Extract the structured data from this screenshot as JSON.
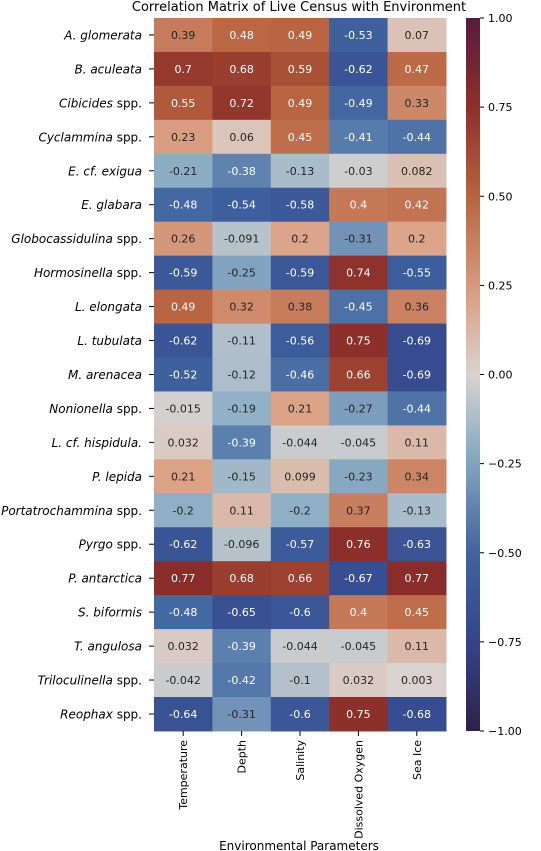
{
  "chart_data": {
    "type": "heatmap",
    "title": "Correlation Matrix of Live Census with Environment",
    "xlabel": "Environmental Parameters",
    "ylabel": "",
    "columns": [
      "Temperature",
      "Depth",
      "Salinity",
      "Dissolved Oxygen",
      "Sea Ice"
    ],
    "rows": [
      {
        "label_italic": "A. glomerata",
        "label_plain": "",
        "values": [
          0.39,
          0.48,
          0.49,
          -0.53,
          0.07
        ],
        "labels": [
          "0.39",
          "0.48",
          "0.49",
          "-0.53",
          "0.07"
        ]
      },
      {
        "label_italic": "B. aculeata",
        "label_plain": "",
        "values": [
          0.7,
          0.68,
          0.59,
          -0.62,
          0.47
        ],
        "labels": [
          "0.7",
          "0.68",
          "0.59",
          "-0.62",
          "0.47"
        ]
      },
      {
        "label_italic": "Cibicides",
        "label_plain": " spp.",
        "values": [
          0.55,
          0.72,
          0.49,
          -0.49,
          0.33
        ],
        "labels": [
          "0.55",
          "0.72",
          "0.49",
          "-0.49",
          "0.33"
        ]
      },
      {
        "label_italic": "Cyclammina",
        "label_plain": " spp.",
        "values": [
          0.23,
          0.06,
          0.45,
          -0.41,
          -0.44
        ],
        "labels": [
          "0.23",
          "0.06",
          "0.45",
          "-0.41",
          "-0.44"
        ]
      },
      {
        "label_italic": "E. cf. exigua",
        "label_plain": "",
        "values": [
          -0.21,
          -0.38,
          -0.13,
          -0.03,
          0.082
        ],
        "labels": [
          "-0.21",
          "-0.38",
          "-0.13",
          "-0.03",
          "0.082"
        ]
      },
      {
        "label_italic": "E. glabara",
        "label_plain": "",
        "values": [
          -0.48,
          -0.54,
          -0.58,
          0.4,
          0.42
        ],
        "labels": [
          "-0.48",
          "-0.54",
          "-0.58",
          "0.4",
          "0.42"
        ]
      },
      {
        "label_italic": "Globocassidulina",
        "label_plain": " spp.",
        "values": [
          0.26,
          -0.091,
          0.2,
          -0.31,
          0.2
        ],
        "labels": [
          "0.26",
          "-0.091",
          "0.2",
          "-0.31",
          "0.2"
        ]
      },
      {
        "label_italic": "Hormosinella",
        "label_plain": " spp.",
        "values": [
          -0.59,
          -0.25,
          -0.59,
          0.74,
          -0.55
        ],
        "labels": [
          "-0.59",
          "-0.25",
          "-0.59",
          "0.74",
          "-0.55"
        ]
      },
      {
        "label_italic": "L. elongata",
        "label_plain": "",
        "values": [
          0.49,
          0.32,
          0.38,
          -0.45,
          0.36
        ],
        "labels": [
          "0.49",
          "0.32",
          "0.38",
          "-0.45",
          "0.36"
        ]
      },
      {
        "label_italic": "L. tubulata",
        "label_plain": "",
        "values": [
          -0.62,
          -0.11,
          -0.56,
          0.75,
          -0.69
        ],
        "labels": [
          "-0.62",
          "-0.11",
          "-0.56",
          "0.75",
          "-0.69"
        ]
      },
      {
        "label_italic": "M. arenacea",
        "label_plain": "",
        "values": [
          -0.52,
          -0.12,
          -0.46,
          0.66,
          -0.69
        ],
        "labels": [
          "-0.52",
          "-0.12",
          "-0.46",
          "0.66",
          "-0.69"
        ]
      },
      {
        "label_italic": "Nonionella",
        "label_plain": " spp.",
        "values": [
          -0.015,
          -0.19,
          0.21,
          -0.27,
          -0.44
        ],
        "labels": [
          "-0.015",
          "-0.19",
          "0.21",
          "-0.27",
          "-0.44"
        ]
      },
      {
        "label_italic": "L. cf. hispidula.",
        "label_plain": "",
        "values": [
          0.032,
          -0.39,
          -0.044,
          -0.045,
          0.11
        ],
        "labels": [
          "0.032",
          "-0.39",
          "-0.044",
          "-0.045",
          "0.11"
        ]
      },
      {
        "label_italic": "P. lepida",
        "label_plain": "",
        "values": [
          0.21,
          -0.15,
          0.099,
          -0.23,
          0.34
        ],
        "labels": [
          "0.21",
          "-0.15",
          "0.099",
          "-0.23",
          "0.34"
        ]
      },
      {
        "label_italic": "Portatrochammina",
        "label_plain": " spp.",
        "values": [
          -0.2,
          0.11,
          -0.2,
          0.37,
          -0.13
        ],
        "labels": [
          "-0.2",
          "0.11",
          "-0.2",
          "0.37",
          "-0.13"
        ]
      },
      {
        "label_italic": "Pyrgo",
        "label_plain": " spp.",
        "values": [
          -0.62,
          -0.096,
          -0.57,
          0.76,
          -0.63
        ],
        "labels": [
          "-0.62",
          "-0.096",
          "-0.57",
          "0.76",
          "-0.63"
        ]
      },
      {
        "label_italic": "P. antarctica",
        "label_plain": "",
        "values": [
          0.77,
          0.68,
          0.66,
          -0.67,
          0.77
        ],
        "labels": [
          "0.77",
          "0.68",
          "0.66",
          "-0.67",
          "0.77"
        ]
      },
      {
        "label_italic": "S. biformis",
        "label_plain": "",
        "values": [
          -0.48,
          -0.65,
          -0.6,
          0.4,
          0.45
        ],
        "labels": [
          "-0.48",
          "-0.65",
          "-0.6",
          "0.4",
          "0.45"
        ]
      },
      {
        "label_italic": "T. angulosa",
        "label_plain": "",
        "values": [
          0.032,
          -0.39,
          -0.044,
          -0.045,
          0.11
        ],
        "labels": [
          "0.032",
          "-0.39",
          "-0.044",
          "-0.045",
          "0.11"
        ]
      },
      {
        "label_italic": "Triloculinella",
        "label_plain": " spp.",
        "values": [
          -0.042,
          -0.42,
          -0.1,
          0.032,
          0.003
        ],
        "labels": [
          "-0.042",
          "-0.42",
          "-0.1",
          "0.032",
          "0.003"
        ]
      },
      {
        "label_italic": "Reophax",
        "label_plain": " spp.",
        "values": [
          -0.64,
          -0.31,
          -0.6,
          0.75,
          -0.68
        ],
        "labels": [
          "-0.64",
          "-0.31",
          "-0.6",
          "0.75",
          "-0.68"
        ]
      }
    ],
    "colorbar": {
      "range": [
        -1.0,
        1.0
      ],
      "ticks": [
        1.0,
        0.75,
        0.5,
        0.25,
        0.0,
        -0.25,
        -0.5,
        -0.75,
        -1.0
      ],
      "tick_labels": [
        "1.00",
        "0.75",
        "0.50",
        "0.25",
        "0.00",
        "−0.25",
        "−0.50",
        "−0.75",
        "−1.00"
      ],
      "colormap": "diverging blue-grey-red (twilight-shifted)"
    },
    "colors": {
      "max": "#5a1a3e",
      "high": "#a8452e",
      "mid_high": "#dca488",
      "center": "#d9d3cf",
      "mid_low": "#8fafc5",
      "low": "#3f64a0",
      "min": "#2f1f4b"
    }
  }
}
